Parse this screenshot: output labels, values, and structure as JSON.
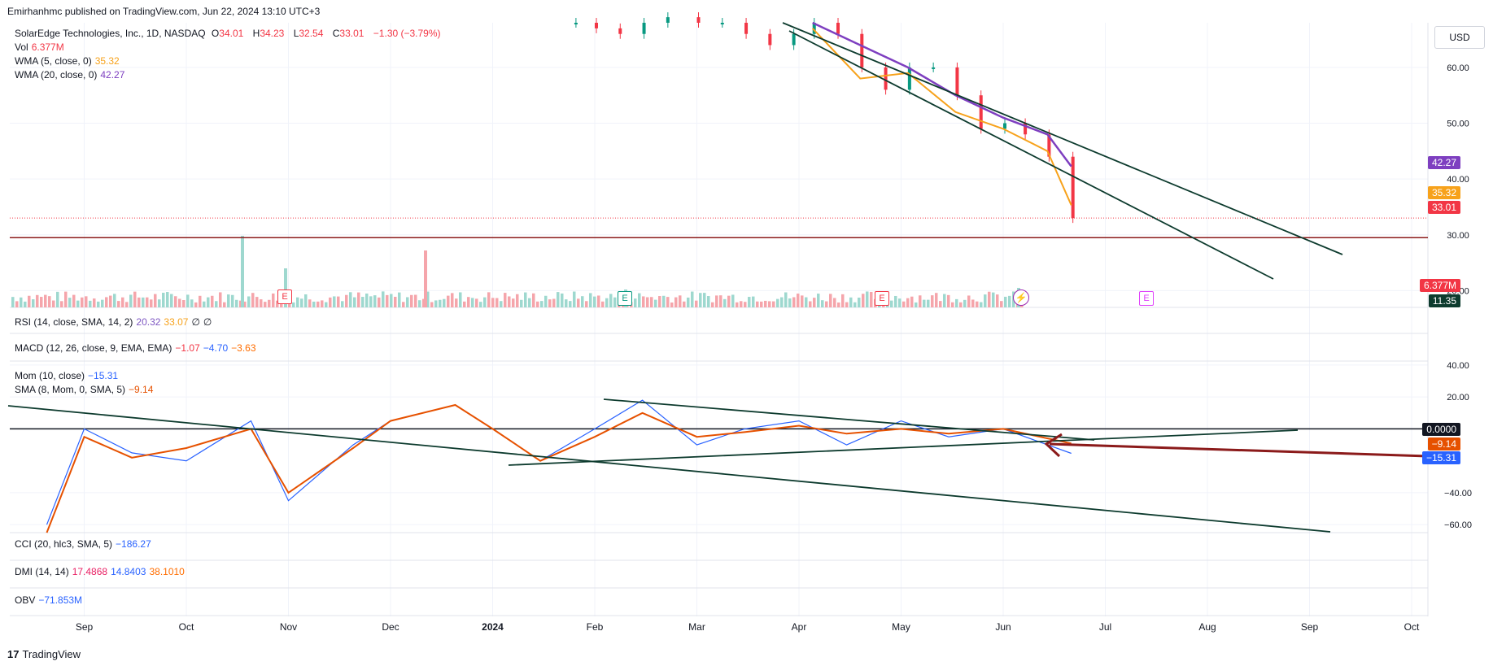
{
  "header": {
    "published": "Emirhanhmc published on TradingView.com, Jun 22, 2024 13:10 UTC+3",
    "currency": "USD"
  },
  "symbol": {
    "name": "SolarEdge Technologies, Inc., 1D, NASDAQ",
    "o_label": "O",
    "o": "34.01",
    "h_label": "H",
    "h": "34.23",
    "l_label": "L",
    "l": "32.54",
    "c_label": "C",
    "c": "33.01",
    "change": "−1.30 (−3.79%)"
  },
  "indicators": {
    "vol_label": "Vol",
    "vol_value": "6.377M",
    "wma5_label": "WMA (5, close, 0)",
    "wma5_value": "35.32",
    "wma20_label": "WMA (20, close, 0)",
    "wma20_value": "42.27",
    "rsi_label": "RSI (14, close, SMA, 14, 2)",
    "rsi_v1": "20.32",
    "rsi_v2": "33.07",
    "rsi_v3": "∅",
    "rsi_v4": "∅",
    "macd_label": "MACD (12, 26, close, 9, EMA, EMA)",
    "macd_v1": "−1.07",
    "macd_v2": "−4.70",
    "macd_v3": "−3.63",
    "mom_label": "Mom (10, close)",
    "mom_value": "−15.31",
    "sma_label": "SMA (8, Mom, 0, SMA, 5)",
    "sma_value": "−9.14",
    "cci_label": "CCI (20, hlc3, SMA, 5)",
    "cci_value": "−186.27",
    "dmi_label": "DMI (14, 14)",
    "dmi_v1": "17.4868",
    "dmi_v2": "14.8403",
    "dmi_v3": "38.1010",
    "obv_label": "OBV",
    "obv_value": "−71.853M"
  },
  "price_tags": {
    "wma20": "42.27",
    "wma5": "35.32",
    "close": "33.01",
    "vol": "6.377M",
    "extra": "11.35",
    "mom_zero": "0.0000",
    "sma": "−9.14",
    "mom": "−15.31"
  },
  "earnings_badges": [
    "E",
    "E",
    "E",
    "E"
  ],
  "brand": "TradingView",
  "colors": {
    "up": "#089981",
    "down": "#f23645",
    "wma5": "#f7a21b",
    "wma20": "#7e3fc0",
    "mom": "#2962ff",
    "sma": "#e65100",
    "trend": "#0d3b2e",
    "support": "#8b1a1a"
  },
  "chart_data": [
    {
      "type": "line",
      "title": "SolarEdge Technologies, Inc., 1D, NASDAQ",
      "y_axis_ticks": [
        "60.00",
        "50.00",
        "40.00",
        "30.00",
        "20.00"
      ],
      "ylim": [
        17,
        68
      ],
      "x_ticks": [
        "Sep",
        "Oct",
        "Nov",
        "Dec",
        "2024",
        "Feb",
        "Mar",
        "Apr",
        "May",
        "Jun",
        "Jul",
        "Aug",
        "Sep",
        "Oct"
      ],
      "series": [
        {
          "name": "Price",
          "x": [
            "Jan 25",
            "Feb 1",
            "Feb 8",
            "Feb 15",
            "Feb 22",
            "Mar 1",
            "Mar 8",
            "Mar 15",
            "Mar 22",
            "Mar 29",
            "Apr 5",
            "Apr 12",
            "Apr 19",
            "Apr 26",
            "May 3",
            "May 10",
            "May 17",
            "May 24",
            "May 31",
            "Jun 7",
            "Jun 14",
            "Jun 21"
          ],
          "values": [
            68,
            67,
            66,
            68,
            69,
            68,
            68,
            66,
            64,
            66,
            68,
            66,
            60,
            56,
            60,
            60,
            55,
            49,
            50,
            48,
            44,
            33.01
          ]
        },
        {
          "name": "WMA (5, close, 0)",
          "x": [
            "Apr 5",
            "Apr 19",
            "May 3",
            "May 17",
            "May 31",
            "Jun 14",
            "Jun 21"
          ],
          "values": [
            67,
            58,
            59,
            52,
            49,
            45,
            35.32
          ]
        },
        {
          "name": "WMA (20, close, 0)",
          "x": [
            "Apr 5",
            "Apr 19",
            "May 3",
            "May 17",
            "May 31",
            "Jun 14",
            "Jun 21"
          ],
          "values": [
            68,
            64,
            60,
            55,
            51,
            48,
            42.27
          ]
        }
      ],
      "volume_value": "6.377M",
      "horizontal_line": 29.5
    },
    {
      "type": "line",
      "title": "Mom (10, close)",
      "y_axis_ticks": [
        "40.00",
        "20.00",
        "0.0000",
        "−40.00",
        "−60.00"
      ],
      "ylim": [
        -65,
        42
      ],
      "series": [
        {
          "name": "Mom (10, close)",
          "x": [
            "Aug 20",
            "Sep 1",
            "Sep 15",
            "Oct 1",
            "Oct 20",
            "Nov 1",
            "Nov 20",
            "Dec 1",
            "Dec 20",
            "Jan 1",
            "Jan 15",
            "Feb 1",
            "Feb 15",
            "Mar 1",
            "Mar 15",
            "Apr 1",
            "Apr 15",
            "May 1",
            "May 15",
            "Jun 1",
            "Jun 21"
          ],
          "values": [
            -60,
            0,
            -15,
            -20,
            5,
            -45,
            -10,
            5,
            15,
            0,
            -20,
            0,
            18,
            -10,
            0,
            5,
            -10,
            5,
            -5,
            0,
            -15.31
          ]
        },
        {
          "name": "SMA (8, Mom, 0, SMA, 5)",
          "x": [
            "Aug 20",
            "Sep 1",
            "Sep 15",
            "Oct 1",
            "Oct 20",
            "Nov 1",
            "Nov 20",
            "Dec 1",
            "Dec 20",
            "Jan 1",
            "Jan 15",
            "Feb 1",
            "Feb 15",
            "Mar 1",
            "Mar 15",
            "Apr 1",
            "Apr 15",
            "May 1",
            "May 15",
            "Jun 1",
            "Jun 21"
          ],
          "values": [
            -65,
            -5,
            -18,
            -12,
            0,
            -40,
            -12,
            5,
            15,
            0,
            -20,
            -5,
            10,
            -5,
            -2,
            2,
            -3,
            0,
            -3,
            0,
            -9.14
          ]
        }
      ]
    }
  ]
}
